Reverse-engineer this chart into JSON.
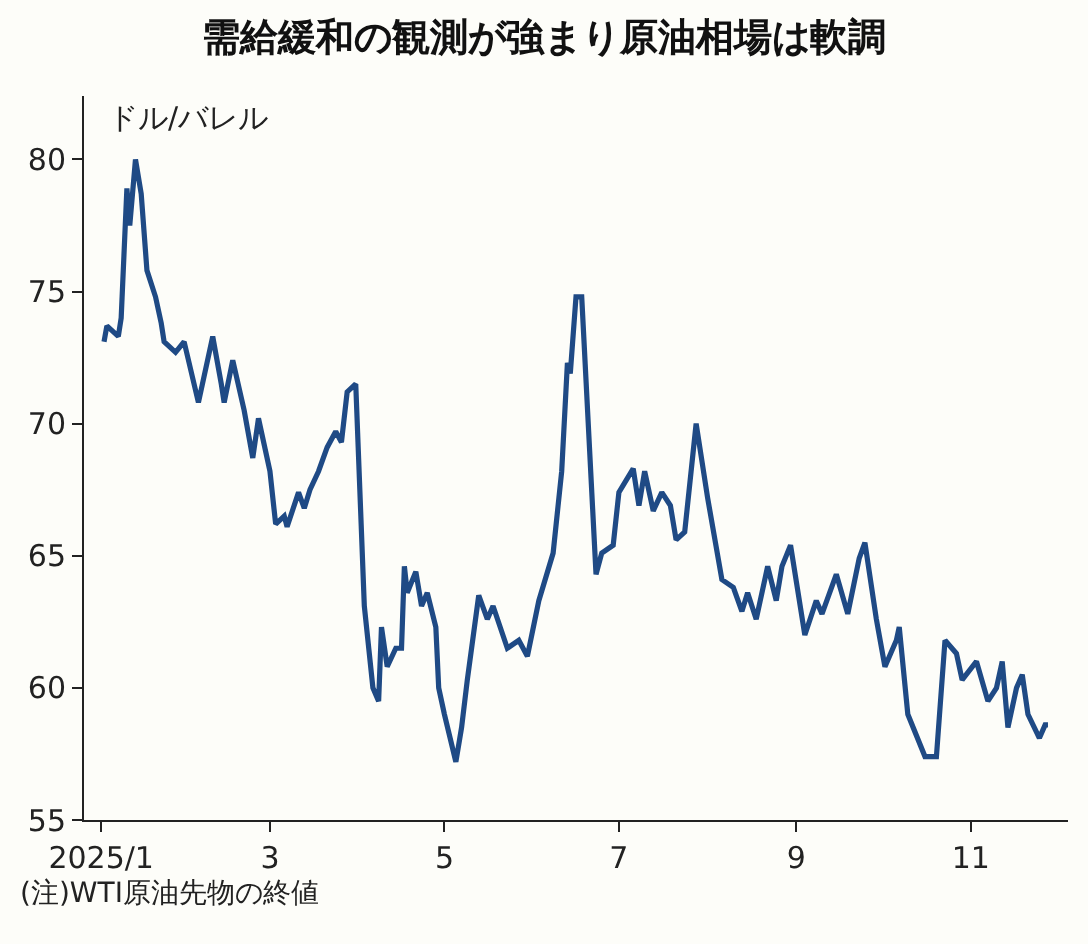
{
  "chart_data": {
    "type": "line",
    "title": "需給緩和の観測が強まり原油相場は軟調",
    "ylabel": "ドル/バレル",
    "annotations": [
      "(注)WTI原油先物の終値"
    ],
    "x": [
      "2025-01-02",
      "2025-01-03",
      "2025-01-07",
      "2025-01-08",
      "2025-01-10",
      "2025-01-11",
      "2025-01-13",
      "2025-01-15",
      "2025-01-17",
      "2025-01-20",
      "2025-01-22",
      "2025-01-23",
      "2025-01-27",
      "2025-01-30",
      "2025-02-04",
      "2025-02-09",
      "2025-02-12",
      "2025-02-13",
      "2025-02-16",
      "2025-02-20",
      "2025-02-23",
      "2025-02-25",
      "2025-03-01",
      "2025-03-03",
      "2025-03-06",
      "2025-03-07",
      "2025-03-11",
      "2025-03-13",
      "2025-03-15",
      "2025-03-18",
      "2025-03-21",
      "2025-03-24",
      "2025-03-26",
      "2025-03-28",
      "2025-03-31",
      "2025-04-03",
      "2025-04-06",
      "2025-04-08",
      "2025-04-09",
      "2025-04-11",
      "2025-04-14",
      "2025-04-16",
      "2025-04-17",
      "2025-04-18",
      "2025-04-21",
      "2025-04-23",
      "2025-04-25",
      "2025-04-28",
      "2025-04-29",
      "2025-05-01",
      "2025-05-05",
      "2025-05-07",
      "2025-05-09",
      "2025-05-13",
      "2025-05-16",
      "2025-05-18",
      "2025-05-23",
      "2025-05-27",
      "2025-05-30",
      "2025-06-03",
      "2025-06-08",
      "2025-06-11",
      "2025-06-13",
      "2025-06-14",
      "2025-06-16",
      "2025-06-18",
      "2025-06-23",
      "2025-06-25",
      "2025-06-29",
      "2025-07-01",
      "2025-07-06",
      "2025-07-08",
      "2025-07-10",
      "2025-07-13",
      "2025-07-16",
      "2025-07-19",
      "2025-07-21",
      "2025-07-24",
      "2025-07-28",
      "2025-08-01",
      "2025-08-06",
      "2025-08-10",
      "2025-08-13",
      "2025-08-15",
      "2025-08-18",
      "2025-08-22",
      "2025-08-25",
      "2025-08-27",
      "2025-08-30",
      "2025-09-04",
      "2025-09-08",
      "2025-09-10",
      "2025-09-15",
      "2025-09-19",
      "2025-09-23",
      "2025-09-25",
      "2025-09-29",
      "2025-10-02",
      "2025-10-06",
      "2025-10-07",
      "2025-10-10",
      "2025-10-16",
      "2025-10-20",
      "2025-10-23",
      "2025-10-27",
      "2025-10-29",
      "2025-11-03",
      "2025-11-07",
      "2025-11-10",
      "2025-11-12",
      "2025-11-14",
      "2025-11-17",
      "2025-11-19",
      "2025-11-21",
      "2025-11-25",
      "2025-11-27",
      "2025-11-28"
    ],
    "series": [
      {
        "color": "#1f4a85",
        "values": [
          73.1,
          73.7,
          73.3,
          74.0,
          78.9,
          77.5,
          80.0,
          78.7,
          75.8,
          74.8,
          73.8,
          73.1,
          72.7,
          73.1,
          70.8,
          73.3,
          71.5,
          70.8,
          72.4,
          70.5,
          68.7,
          70.2,
          68.2,
          66.2,
          66.5,
          66.1,
          67.4,
          66.8,
          67.5,
          68.2,
          69.1,
          69.7,
          69.3,
          71.2,
          71.5,
          63.1,
          60.0,
          59.5,
          62.3,
          60.8,
          61.5,
          61.5,
          64.6,
          63.6,
          64.4,
          63.1,
          63.6,
          62.3,
          60.0,
          59.0,
          57.2,
          58.5,
          60.3,
          63.5,
          62.6,
          63.1,
          61.5,
          61.8,
          61.2,
          63.3,
          65.1,
          68.2,
          72.3,
          71.9,
          74.8,
          74.8,
          64.3,
          65.1,
          65.4,
          67.4,
          68.3,
          66.9,
          68.2,
          66.7,
          67.4,
          66.9,
          65.6,
          65.9,
          70.0,
          67.2,
          64.1,
          63.8,
          62.9,
          63.6,
          62.6,
          64.6,
          63.3,
          64.6,
          65.4,
          62.0,
          63.3,
          62.8,
          64.3,
          62.8,
          64.9,
          65.5,
          62.6,
          60.8,
          61.8,
          62.3,
          59.0,
          57.4,
          57.4,
          61.8,
          61.3,
          60.3,
          61.0,
          59.5,
          60.0,
          61.0,
          58.5,
          60.0,
          60.5,
          59.0,
          58.1,
          58.6,
          58.6
        ]
      }
    ],
    "xlim": [
      "2024-12-26",
      "2025-12-05"
    ],
    "xticks": [
      {
        "value": "2025-01-01",
        "label": "2025/1"
      },
      {
        "value": "2025-03-01",
        "label": "3"
      },
      {
        "value": "2025-05-01",
        "label": "5"
      },
      {
        "value": "2025-07-01",
        "label": "7"
      },
      {
        "value": "2025-09-01",
        "label": "9"
      },
      {
        "value": "2025-11-01",
        "label": "11"
      }
    ],
    "ylim": [
      55,
      82.4
    ],
    "yticks": [
      55,
      60,
      65,
      70,
      75,
      80
    ],
    "grid": false,
    "legend": false,
    "marker": "none",
    "line_style": "solid"
  }
}
